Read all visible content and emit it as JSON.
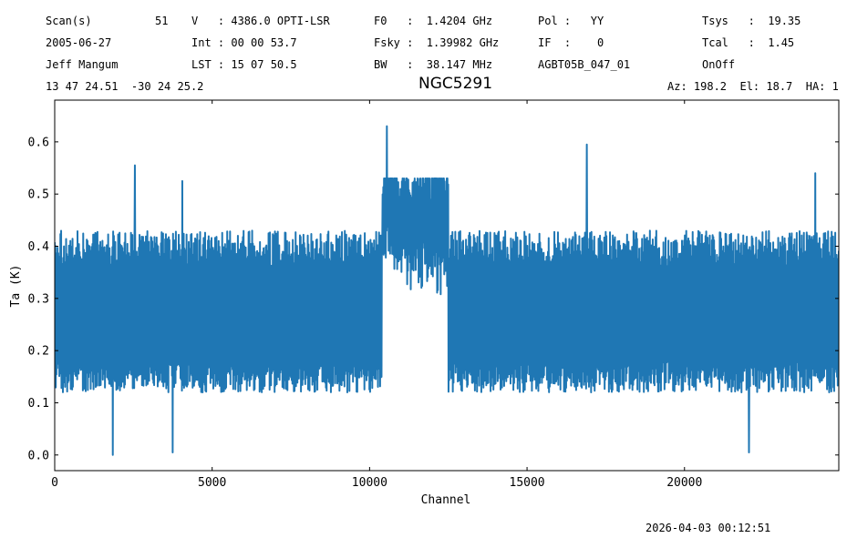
{
  "header": {
    "row1": {
      "scan_label": "Scan(s)",
      "scan_value": "51",
      "v": "V   : 4386.0 OPTI-LSR",
      "f0": "F0   :  1.4204 GHz",
      "pol": "Pol :   YY",
      "tsys": "Tsys   :  19.35"
    },
    "row2": {
      "date": "2005-06-27",
      "int": "Int : 00 00 53.7",
      "fsky": "Fsky :  1.39982 GHz",
      "if": "IF  :    0",
      "tcal": "Tcal   :  1.45"
    },
    "row3": {
      "observer": "Jeff Mangum",
      "lst": "LST : 15 07 50.5",
      "bw": "BW   :  38.147 MHz",
      "project": "AGBT05B_047_01",
      "procedure": "OnOff"
    },
    "row4": {
      "coords": "13 47 24.51  -30 24 25.2",
      "azel": "Az: 198.2  El: 18.7  HA: 1"
    }
  },
  "timestamp": "2026-04-03 00:12:51",
  "chart_data": {
    "type": "line",
    "title": "NGC5291",
    "xlabel": "Channel",
    "ylabel": "Ta (K)",
    "xlim": [
      0,
      24900
    ],
    "ylim": [
      -0.03,
      0.68
    ],
    "x_ticks": [
      0,
      5000,
      10000,
      15000,
      20000
    ],
    "x_tick_labels": [
      "0",
      "5000",
      "10000",
      "15000",
      "20000"
    ],
    "y_ticks": [
      0.0,
      0.1,
      0.2,
      0.3,
      0.4,
      0.5,
      0.6
    ],
    "y_tick_labels": [
      "0.0",
      "0.1",
      "0.2",
      "0.3",
      "0.4",
      "0.5",
      "0.6"
    ],
    "line_color": "#1f77b4",
    "grid": false,
    "series": [
      {
        "x_start": 0,
        "x_end": 24900,
        "baseline_K": 0.27,
        "noise_band_K": [
          0.1,
          0.44
        ],
        "spikes": [
          {
            "x": 1850,
            "y": 0.0
          },
          {
            "x": 2550,
            "y": 0.555
          },
          {
            "x": 3750,
            "y": 0.005
          },
          {
            "x": 4050,
            "y": 0.525
          },
          {
            "x": 10550,
            "y": 0.65
          },
          {
            "x": 16900,
            "y": 0.595
          },
          {
            "x": 22050,
            "y": 0.005
          },
          {
            "x": 24150,
            "y": 0.54
          }
        ],
        "feature": {
          "x_range": [
            10400,
            12500
          ],
          "peak_K": 0.63,
          "level_K": [
            0.2,
            0.53
          ]
        }
      }
    ]
  }
}
